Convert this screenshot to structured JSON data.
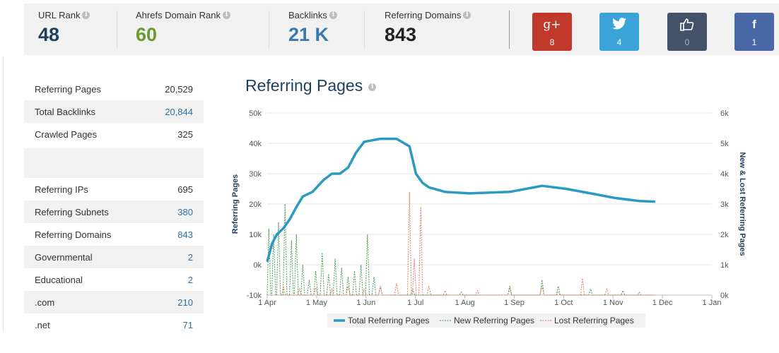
{
  "stats": [
    {
      "label": "URL Rank",
      "value": "48",
      "color": "#1f3f5f"
    },
    {
      "label": "Ahrefs Domain Rank",
      "value": "60",
      "color": "#6a9a2c"
    },
    {
      "label": "Backlinks",
      "value": "21 K",
      "color": "#3a78ad"
    },
    {
      "label": "Referring Domains",
      "value": "843",
      "color": "#222222"
    }
  ],
  "social": [
    {
      "name": "google-plus",
      "glyph": "g+",
      "count": "8",
      "color": "#c0392b"
    },
    {
      "name": "twitter",
      "glyph": "t",
      "count": "4",
      "color": "#3aa4d8"
    },
    {
      "name": "like",
      "glyph": "👍",
      "count": "0",
      "color": "#44516a"
    },
    {
      "name": "facebook",
      "glyph": "f",
      "count": "1",
      "color": "#4a67a5"
    }
  ],
  "metrics": [
    {
      "label": "Referring Pages",
      "value": "20,529",
      "link": false
    },
    {
      "label": "Total Backlinks",
      "value": "20,844",
      "link": true
    },
    {
      "label": "Crawled Pages",
      "value": "325",
      "link": false
    },
    {
      "label": "Referring IPs",
      "value": "695",
      "link": false
    },
    {
      "label": "Referring Subnets",
      "value": "380",
      "link": true
    },
    {
      "label": "Referring Domains",
      "value": "843",
      "link": true
    },
    {
      "label": "Governmental",
      "value": "2",
      "link": true
    },
    {
      "label": "Educational",
      "value": "2",
      "link": true
    },
    {
      "label": ".com",
      "value": "210",
      "link": true
    },
    {
      "label": ".net",
      "value": "71",
      "link": true
    }
  ],
  "chart_title": "Referring Pages",
  "chart_data": {
    "type": "line",
    "x_ticks": [
      "1 Apr",
      "1 May",
      "1 Jun",
      "1 Jul",
      "1 Aug",
      "1 Sep",
      "1 Oct",
      "1 Nov",
      "1 Dec",
      "1 Jan"
    ],
    "y_left": {
      "label": "Referring Pages",
      "ticks": [
        "-10k",
        "0k",
        "10k",
        "20k",
        "30k",
        "40k",
        "50k"
      ],
      "range": [
        -10000,
        50000
      ]
    },
    "y_right": {
      "label": "New & Lost Referring Pages",
      "ticks": [
        "0k",
        "1k",
        "2k",
        "3k",
        "4k",
        "5k",
        "6k"
      ],
      "range": [
        0,
        6000
      ]
    },
    "grid": true,
    "legend_position": "bottom",
    "series": [
      {
        "name": "Total Referring Pages",
        "color": "#2b9ac0",
        "style": "solid",
        "axis": "left",
        "points": [
          [
            0,
            1000
          ],
          [
            3,
            7000
          ],
          [
            6,
            10000
          ],
          [
            10,
            12000
          ],
          [
            14,
            15000
          ],
          [
            18,
            19000
          ],
          [
            22,
            22500
          ],
          [
            28,
            24000
          ],
          [
            35,
            28000
          ],
          [
            40,
            30000
          ],
          [
            45,
            30000
          ],
          [
            50,
            32000
          ],
          [
            55,
            37000
          ],
          [
            60,
            40500
          ],
          [
            70,
            41500
          ],
          [
            80,
            41500
          ],
          [
            88,
            39000
          ],
          [
            92,
            30000
          ],
          [
            96,
            27000
          ],
          [
            100,
            25500
          ],
          [
            110,
            24000
          ],
          [
            125,
            23500
          ],
          [
            150,
            24000
          ],
          [
            170,
            26000
          ],
          [
            185,
            25000
          ],
          [
            200,
            23500
          ],
          [
            215,
            22000
          ],
          [
            230,
            21000
          ],
          [
            240,
            20800
          ]
        ]
      },
      {
        "name": "New Referring Pages",
        "color": "#4a9a5a",
        "style": "dashed",
        "axis": "right",
        "peaks": [
          [
            1,
            2200
          ],
          [
            4,
            2000
          ],
          [
            7,
            2400
          ],
          [
            11,
            3000
          ],
          [
            15,
            1800
          ],
          [
            18,
            2000
          ],
          [
            22,
            1000
          ],
          [
            26,
            500
          ],
          [
            30,
            800
          ],
          [
            34,
            1400
          ],
          [
            38,
            700
          ],
          [
            42,
            1200
          ],
          [
            46,
            900
          ],
          [
            50,
            600
          ],
          [
            54,
            800
          ],
          [
            58,
            1000
          ],
          [
            62,
            2000
          ],
          [
            66,
            600
          ],
          [
            70,
            300
          ],
          [
            90,
            200
          ],
          [
            120,
            100
          ],
          [
            150,
            300
          ],
          [
            170,
            500
          ],
          [
            180,
            300
          ],
          [
            200,
            200
          ],
          [
            220,
            150
          ]
        ]
      },
      {
        "name": "Lost Referring Pages",
        "color": "#e07a5f",
        "style": "dashed",
        "axis": "right",
        "peaks": [
          [
            10,
            300
          ],
          [
            20,
            200
          ],
          [
            30,
            250
          ],
          [
            40,
            200
          ],
          [
            50,
            300
          ],
          [
            60,
            200
          ],
          [
            70,
            300
          ],
          [
            80,
            400
          ],
          [
            88,
            3400
          ],
          [
            91,
            1200
          ],
          [
            95,
            2900
          ],
          [
            100,
            300
          ],
          [
            110,
            150
          ],
          [
            130,
            150
          ],
          [
            150,
            200
          ],
          [
            170,
            300
          ],
          [
            180,
            100
          ],
          [
            195,
            550
          ],
          [
            210,
            200
          ],
          [
            230,
            100
          ]
        ]
      }
    ]
  }
}
